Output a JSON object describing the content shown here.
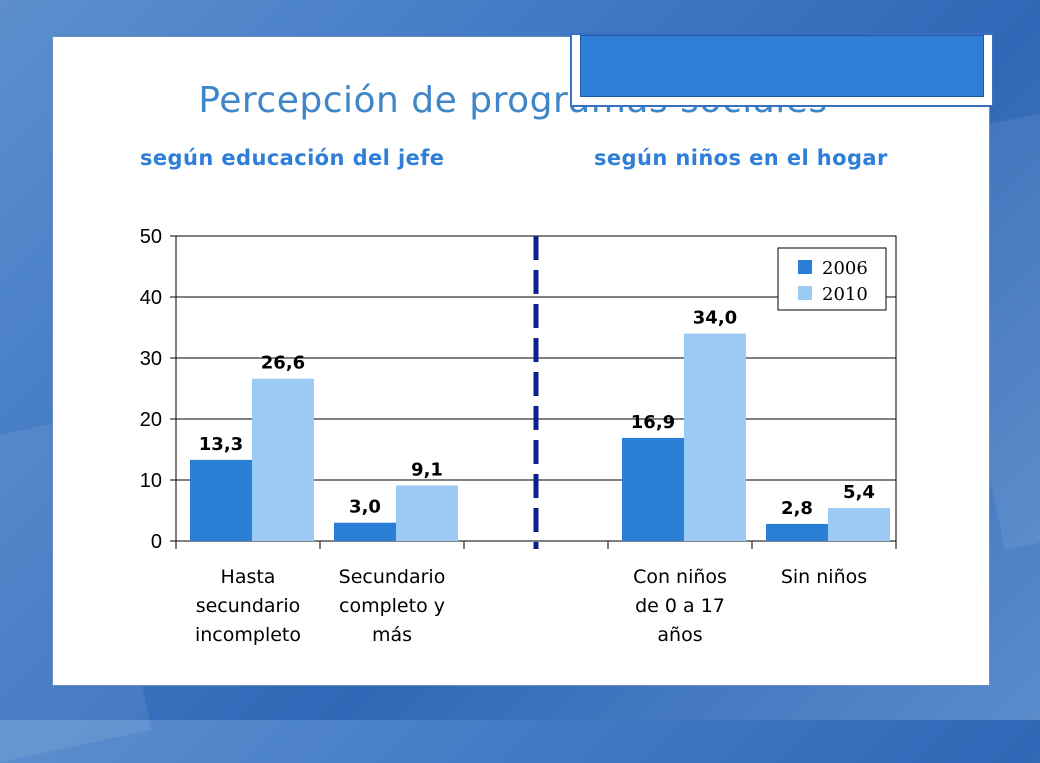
{
  "slide": {
    "title": "Percepción de programas sociales",
    "subtitle_left": "según educación del jefe",
    "subtitle_right": "según niños en el hogar"
  },
  "colors": {
    "series_2006": "#2a7ed6",
    "series_2010": "#9bcaf5",
    "divider": "#0d1f8c",
    "title": "#3f86c9"
  },
  "chart_data": {
    "type": "bar",
    "title": "",
    "xlabel": "",
    "ylabel": "",
    "ylim": [
      0,
      50
    ],
    "yticks": [
      0,
      10,
      20,
      30,
      40,
      50
    ],
    "grid": true,
    "legend_position": "top-right",
    "categories": [
      [
        "Hasta",
        "secundario",
        "incompleto"
      ],
      [
        "Secundario",
        "completo y",
        "más"
      ],
      [
        "Con niños",
        "de 0 a 17",
        "años"
      ],
      [
        "Sin niños"
      ]
    ],
    "series": [
      {
        "name": "2006",
        "values": [
          13.3,
          3.0,
          16.9,
          2.8
        ],
        "labels": [
          "13,3",
          "3,0",
          "16,9",
          "2,8"
        ]
      },
      {
        "name": "2010",
        "values": [
          26.6,
          9.1,
          34.0,
          5.4
        ],
        "labels": [
          "26,6",
          "9,1",
          "34,0",
          "5,4"
        ]
      }
    ]
  }
}
